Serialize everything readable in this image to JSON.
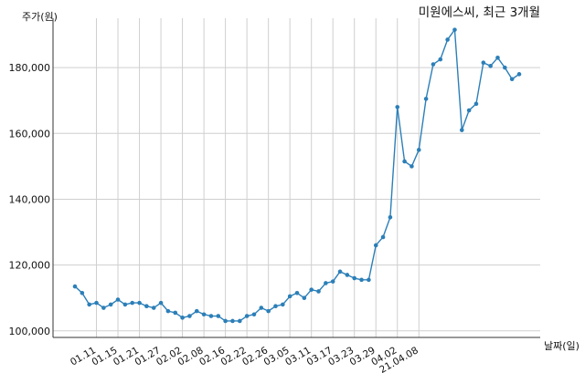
{
  "chart_data": {
    "type": "line",
    "title": "미원에스씨, 최근 3개월",
    "xlabel": "날짜(일)",
    "ylabel": "주가(원)",
    "ylim": [
      98000,
      195000
    ],
    "yticks": [
      100000,
      120000,
      140000,
      160000,
      180000
    ],
    "ytick_labels": [
      "100,000",
      "120,000",
      "140,000",
      "160,000",
      "180,000"
    ],
    "xtick_labels": [
      "01.11",
      "01.15",
      "01.21",
      "01.27",
      "02.02",
      "02.08",
      "02.16",
      "02.22",
      "02.26",
      "03.05",
      "03.11",
      "03.17",
      "03.23",
      "03.29",
      "04.02",
      "21.04.08"
    ],
    "xtick_positions": [
      3,
      6,
      9,
      12,
      15,
      18,
      21,
      24,
      27,
      30,
      33,
      36,
      39,
      42,
      45,
      48
    ],
    "grid": true,
    "line_color": "#2c7fb8",
    "series": [
      {
        "values": [
          113500,
          111500,
          108000,
          108500,
          107000,
          108000,
          109500,
          108000,
          108500,
          108500,
          107500,
          107000,
          108500,
          106000,
          105500,
          104000,
          104500,
          106000,
          105000,
          104500,
          104500,
          103000,
          103000,
          103000,
          104500,
          105000,
          107000,
          106000,
          107500,
          108000,
          110500,
          111500,
          110000,
          112500,
          112000,
          114500,
          115000,
          118000,
          117000,
          116000,
          115500,
          115500,
          126000,
          128500,
          134500,
          168000,
          151500,
          150000,
          155000,
          170500,
          181000,
          182500,
          188500,
          191500,
          161000,
          167000,
          169000,
          181500,
          180500,
          183000,
          180000,
          176500,
          178000
        ]
      }
    ]
  }
}
